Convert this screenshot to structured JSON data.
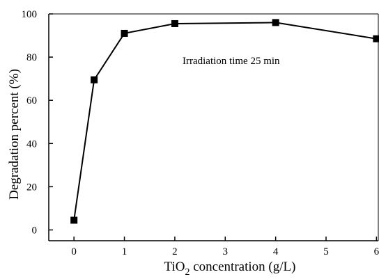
{
  "chart_data": {
    "type": "line",
    "x": [
      0,
      0.4,
      1,
      2,
      4,
      6
    ],
    "values": [
      4.5,
      69.5,
      91,
      95.5,
      96,
      88.5
    ],
    "xlabel": {
      "prefix": "TiO",
      "subscript": "2",
      "suffix": " concentration (g/L)"
    },
    "ylabel": "Degradation percent (%)",
    "xlim": [
      -0.5,
      6.05
    ],
    "ylim": [
      -5,
      100
    ],
    "xticks": [
      0,
      1,
      2,
      3,
      4,
      5,
      6
    ],
    "yticks": [
      0,
      20,
      40,
      60,
      80,
      100
    ],
    "annotation": "Irradiation time 25 min",
    "marker": "square",
    "grid": false,
    "line_color": "#000000"
  }
}
